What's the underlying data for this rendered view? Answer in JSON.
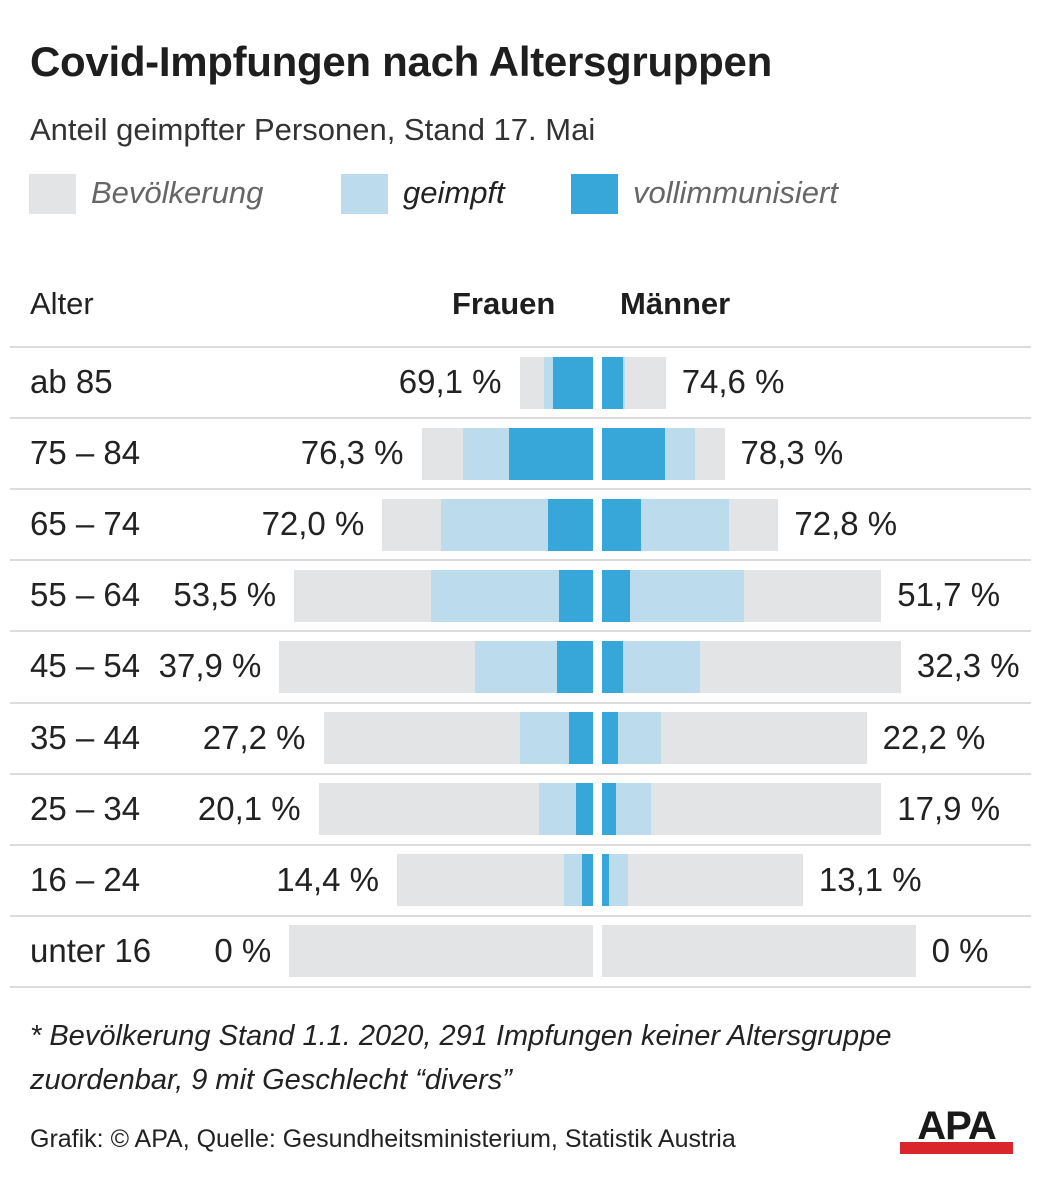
{
  "title": "Covid-Impfungen nach Altersgruppen",
  "subtitle": "Anteil geimpfter Personen, Stand 17. Mai",
  "legend": [
    {
      "label": "Bevölkerung",
      "color": "#e3e4e6",
      "text_color": "#666666"
    },
    {
      "label": "geimpft",
      "color": "#bcdcee",
      "text_color": "#222222"
    },
    {
      "label": "vollimmunisiert",
      "color": "#37a6d8",
      "text_color": "#666666"
    }
  ],
  "headers": {
    "age": "Alter",
    "women": "Frauen",
    "men": "Männer"
  },
  "colors": {
    "population": "#e3e4e6",
    "vaccinated": "#bcdcee",
    "fully": "#37a6d8",
    "apa_red": "#d8262b"
  },
  "chart_data": {
    "type": "bar",
    "title": "Covid-Impfungen nach Altersgruppen",
    "subtitle": "Anteil geimpfter Personen, Stand 17. Mai",
    "categories": [
      "ab 85",
      "75 – 84",
      "65 – 74",
      "55 – 64",
      "45 – 54",
      "35 – 44",
      "25 – 34",
      "16 – 24",
      "unter 16"
    ],
    "series": [
      {
        "name": "Bevölkerung",
        "group": "Frauen",
        "values": [
          15,
          35,
          43,
          61,
          64,
          55,
          56,
          40,
          62
        ]
      },
      {
        "name": "geimpft",
        "group": "Frauen",
        "values": [
          10,
          26.5,
          31,
          33,
          24,
          15,
          11,
          6,
          0
        ]
      },
      {
        "name": "vollimmunisiert",
        "group": "Frauen",
        "values": [
          8.2,
          17.2,
          9.1,
          7,
          7.3,
          5,
          3.5,
          2.2,
          0
        ]
      },
      {
        "name": "Bevölkerung",
        "group": "Männer",
        "values": [
          13,
          25,
          36,
          57,
          61,
          54,
          57,
          41,
          64
        ]
      },
      {
        "name": "geimpft",
        "group": "Männer",
        "values": [
          4.6,
          19,
          26,
          29,
          20,
          12,
          10,
          5.3,
          0
        ]
      },
      {
        "name": "vollimmunisiert",
        "group": "Männer",
        "values": [
          4.2,
          12.8,
          8,
          5.8,
          4.3,
          3.2,
          2.8,
          1.5,
          0
        ]
      }
    ],
    "vaccinated_share": {
      "women": [
        "69,1 %",
        "76,3 %",
        "72,0 %",
        "53,5 %",
        "37,9 %",
        "27,2 %",
        "20,1 %",
        "14,4 %",
        "0 %"
      ],
      "men": [
        "74,6 %",
        "78,3 %",
        "72,8 %",
        "51,7 %",
        "32,3 %",
        "22,2 %",
        "17,9 %",
        "13,1 %",
        "0 %"
      ]
    }
  },
  "footnote": "* Bevölkerung Stand 1.1. 2020, 291 Impfungen keiner Altersgruppe zuordenbar, 9 mit Geschlecht “divers”",
  "source": "Grafik: © APA, Quelle: Gesundheitsministerium, Statistik Austria",
  "logo_text": "APA"
}
